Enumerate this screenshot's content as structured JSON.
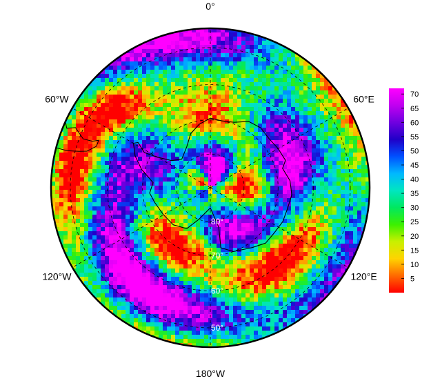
{
  "map": {
    "projection": "south-polar-stereographic",
    "variable_scale": "rainbow",
    "longitude_labels": [
      {
        "lon": 0,
        "text": "0°"
      },
      {
        "lon": 60,
        "text": "60°E"
      },
      {
        "lon": 120,
        "text": "120°E"
      },
      {
        "lon": 180,
        "text": "180°W"
      },
      {
        "lon": -120,
        "text": "120°W"
      },
      {
        "lon": -60,
        "text": "60°W"
      }
    ],
    "latitude_labels": [
      {
        "lat": -80,
        "text": "80°"
      },
      {
        "lat": -70,
        "text": "70°"
      },
      {
        "lat": -60,
        "text": "60°"
      },
      {
        "lat": -50,
        "text": "50°"
      }
    ],
    "graticule": {
      "style": "dashed",
      "color": "#000000"
    },
    "coastline_color": "#000000"
  },
  "colorbar": {
    "min": 0,
    "max": 72,
    "ticks": [
      "5",
      "10",
      "15",
      "20",
      "25",
      "30",
      "35",
      "40",
      "45",
      "50",
      "55",
      "60",
      "65",
      "70"
    ],
    "colors": [
      "#ff0000",
      "#ff6a00",
      "#ffd400",
      "#c8f000",
      "#3cf000",
      "#00e860",
      "#00e6c0",
      "#00b8ff",
      "#0050ff",
      "#2000c8",
      "#7000e0",
      "#c000f0",
      "#ff00ff"
    ]
  }
}
